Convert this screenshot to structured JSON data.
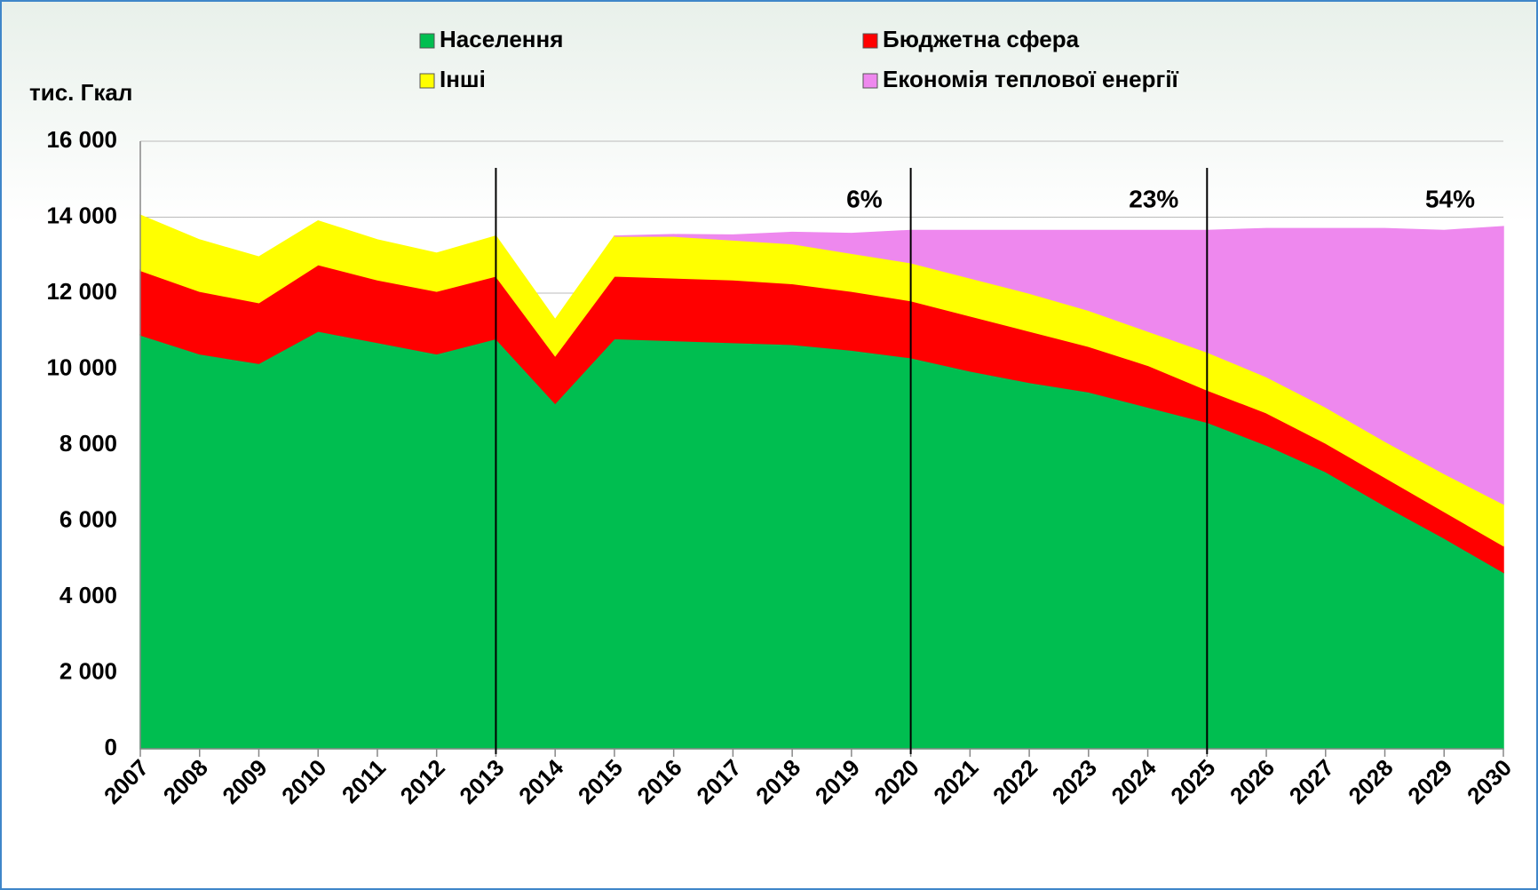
{
  "chart_data": {
    "type": "stacked-area",
    "y_label": "тис. Гкал",
    "categories": [
      "2007",
      "2008",
      "2009",
      "2010",
      "2011",
      "2012",
      "2013",
      "2014",
      "2015",
      "2016",
      "2017",
      "2018",
      "2019",
      "2020",
      "2021",
      "2022",
      "2023",
      "2024",
      "2025",
      "2026",
      "2027",
      "2028",
      "2029",
      "2030"
    ],
    "series": [
      {
        "name": "Населення",
        "color": "#00be50",
        "values": [
          10900,
          10400,
          10150,
          11000,
          10700,
          10400,
          10800,
          9100,
          10800,
          10750,
          10700,
          10650,
          10500,
          10300,
          9950,
          9650,
          9400,
          9000,
          8600,
          8000,
          7300,
          6400,
          5550,
          4650
        ]
      },
      {
        "name": "Бюджетна сфера",
        "color": "#ff0000",
        "values": [
          1700,
          1650,
          1600,
          1750,
          1650,
          1650,
          1650,
          1250,
          1650,
          1650,
          1650,
          1600,
          1550,
          1500,
          1450,
          1350,
          1200,
          1100,
          850,
          850,
          750,
          750,
          700,
          700
        ]
      },
      {
        "name": "Інші",
        "color": "#ffff00",
        "values": [
          1450,
          1350,
          1200,
          1150,
          1050,
          1000,
          1050,
          950,
          1050,
          1100,
          1050,
          1050,
          1000,
          1000,
          1000,
          1000,
          950,
          900,
          1000,
          950,
          950,
          950,
          1000,
          1100
        ]
      },
      {
        "name": "Економія теплової енергії",
        "color": "#ee88ee",
        "values": [
          null,
          null,
          null,
          null,
          null,
          null,
          null,
          null,
          0,
          40,
          130,
          300,
          520,
          850,
          1250,
          1650,
          2100,
          2650,
          3200,
          3900,
          4700,
          5600,
          6400,
          7300
        ]
      }
    ],
    "ylim": [
      0,
      16000
    ],
    "yticks": [
      0,
      {
        "value": 2000,
        "label": "2 000"
      },
      {
        "value": 4000,
        "label": "4 000"
      },
      {
        "value": 6000,
        "label": "6 000"
      },
      {
        "value": 8000,
        "label": "8 000"
      },
      {
        "value": 10000,
        "label": "10 000"
      },
      {
        "value": 12000,
        "label": "12 000"
      },
      {
        "value": 14000,
        "label": "14 000"
      },
      {
        "value": 16000,
        "label": "16 000"
      }
    ],
    "grid": true,
    "markers": [
      "2013",
      "2020",
      "2025"
    ],
    "annotations": [
      {
        "text": "6%",
        "x": "2020"
      },
      {
        "text": "23%",
        "x": "2025"
      },
      {
        "text": "54%",
        "x": "2030"
      }
    ]
  }
}
